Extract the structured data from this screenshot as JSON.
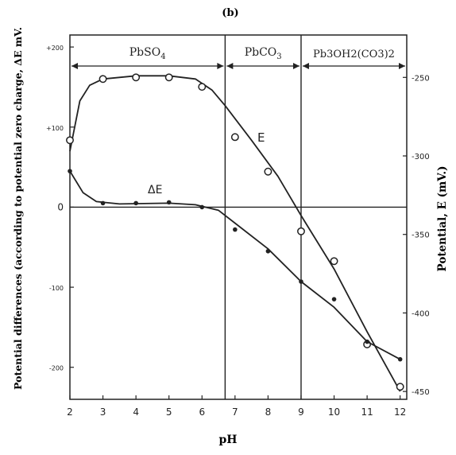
{
  "chart_data": {
    "type": "line",
    "panel_label": "(b)",
    "xlabel": "pH",
    "ylabel_left": "Potential differences (according to potential zero charge, ΔE mV.",
    "ylabel_right": "Potential, E (mV.)",
    "x_ticks": [
      2,
      3,
      4,
      5,
      6,
      7,
      8,
      9,
      10,
      11,
      12
    ],
    "xlim": [
      2,
      12.2
    ],
    "left_axis": {
      "ylim": [
        -240,
        215
      ],
      "ticks": [
        200,
        100,
        0,
        -100,
        -200
      ],
      "tick_labels": [
        "+200",
        "+100",
        "0",
        "-100",
        "-200"
      ]
    },
    "right_axis": {
      "ylim": [
        -455,
        -223
      ],
      "ticks": [
        -250,
        -300,
        -350,
        -400,
        -450
      ],
      "tick_labels": [
        "-250",
        "-300",
        "-350",
        "-400",
        "-450"
      ]
    },
    "regions": [
      {
        "label": "PbSO4",
        "label_main": "PbSO",
        "label_sub": "4",
        "from": 2,
        "to": 6.7
      },
      {
        "label": "PbCO3",
        "label_main": "PbCO",
        "label_sub": "3",
        "from": 6.7,
        "to": 9
      },
      {
        "label": "Pb3OH2(CO3)2",
        "from": 9,
        "to": 12.2
      }
    ],
    "series": [
      {
        "name": "E",
        "axis": "right",
        "marker": "open-circle",
        "points": [
          {
            "x": 2,
            "y": -290
          },
          {
            "x": 3,
            "y": -251
          },
          {
            "x": 4,
            "y": -250
          },
          {
            "x": 5,
            "y": -250
          },
          {
            "x": 6,
            "y": -256
          },
          {
            "x": 7,
            "y": -288
          },
          {
            "x": 8,
            "y": -310
          },
          {
            "x": 9,
            "y": -348
          },
          {
            "x": 10,
            "y": -367
          },
          {
            "x": 11,
            "y": -420
          },
          {
            "x": 12,
            "y": -447
          }
        ],
        "curve": [
          {
            "x": 2,
            "y": -297
          },
          {
            "x": 2.3,
            "y": -265
          },
          {
            "x": 2.6,
            "y": -255
          },
          {
            "x": 3,
            "y": -251
          },
          {
            "x": 4,
            "y": -249
          },
          {
            "x": 5,
            "y": -249
          },
          {
            "x": 5.8,
            "y": -251
          },
          {
            "x": 6.3,
            "y": -258
          },
          {
            "x": 6.7,
            "y": -268
          },
          {
            "x": 7.5,
            "y": -290
          },
          {
            "x": 8.3,
            "y": -313
          },
          {
            "x": 9,
            "y": -338
          },
          {
            "x": 10,
            "y": -372
          },
          {
            "x": 11,
            "y": -412
          },
          {
            "x": 12,
            "y": -450
          }
        ]
      },
      {
        "name": "ΔE",
        "axis": "left",
        "marker": "filled-dot",
        "points": [
          {
            "x": 2,
            "y": 45
          },
          {
            "x": 3,
            "y": 5
          },
          {
            "x": 4,
            "y": 5
          },
          {
            "x": 5,
            "y": 6
          },
          {
            "x": 6,
            "y": 0
          },
          {
            "x": 7,
            "y": -28
          },
          {
            "x": 8,
            "y": -55
          },
          {
            "x": 9,
            "y": -93
          },
          {
            "x": 10,
            "y": -115
          },
          {
            "x": 11,
            "y": -168
          },
          {
            "x": 12,
            "y": -190
          }
        ],
        "curve": [
          {
            "x": 2,
            "y": 45
          },
          {
            "x": 2.4,
            "y": 18
          },
          {
            "x": 2.8,
            "y": 7
          },
          {
            "x": 3.5,
            "y": 4
          },
          {
            "x": 5,
            "y": 5
          },
          {
            "x": 5.8,
            "y": 3
          },
          {
            "x": 6.5,
            "y": -4
          },
          {
            "x": 7,
            "y": -20
          },
          {
            "x": 8,
            "y": -52
          },
          {
            "x": 9,
            "y": -93
          },
          {
            "x": 10,
            "y": -125
          },
          {
            "x": 11,
            "y": -168
          },
          {
            "x": 12,
            "y": -190
          }
        ]
      }
    ]
  }
}
